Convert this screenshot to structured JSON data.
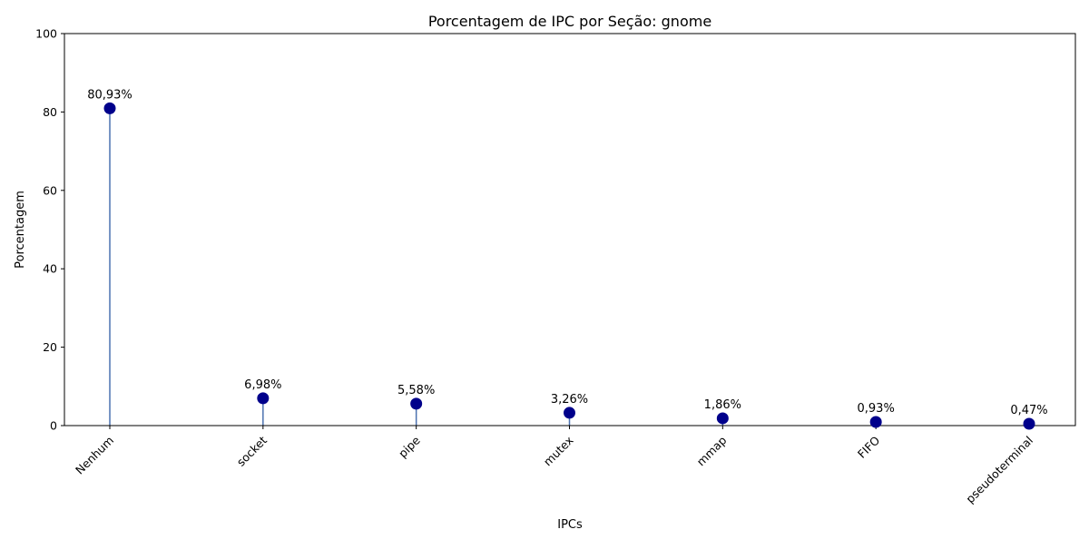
{
  "chart_data": {
    "type": "lollipop",
    "title": "Porcentagem de IPC por Seção: gnome",
    "xlabel": "IPCs",
    "ylabel": "Porcentagem",
    "ylim": [
      0,
      100
    ],
    "yticks": [
      0,
      20,
      40,
      60,
      80,
      100
    ],
    "categories": [
      "Nenhum",
      "socket",
      "pipe",
      "mutex",
      "mmap",
      "FIFO",
      "pseudoterminal"
    ],
    "values": [
      80.93,
      6.98,
      5.58,
      3.26,
      1.86,
      0.93,
      0.47
    ],
    "data_labels": [
      "80,93%",
      "6,98%",
      "5,58%",
      "3,26%",
      "1,86%",
      "0,93%",
      "0,47%"
    ],
    "grid": false,
    "legend": "none",
    "colors": {
      "marker": "#00008b",
      "stem": "#4c72b0"
    }
  }
}
